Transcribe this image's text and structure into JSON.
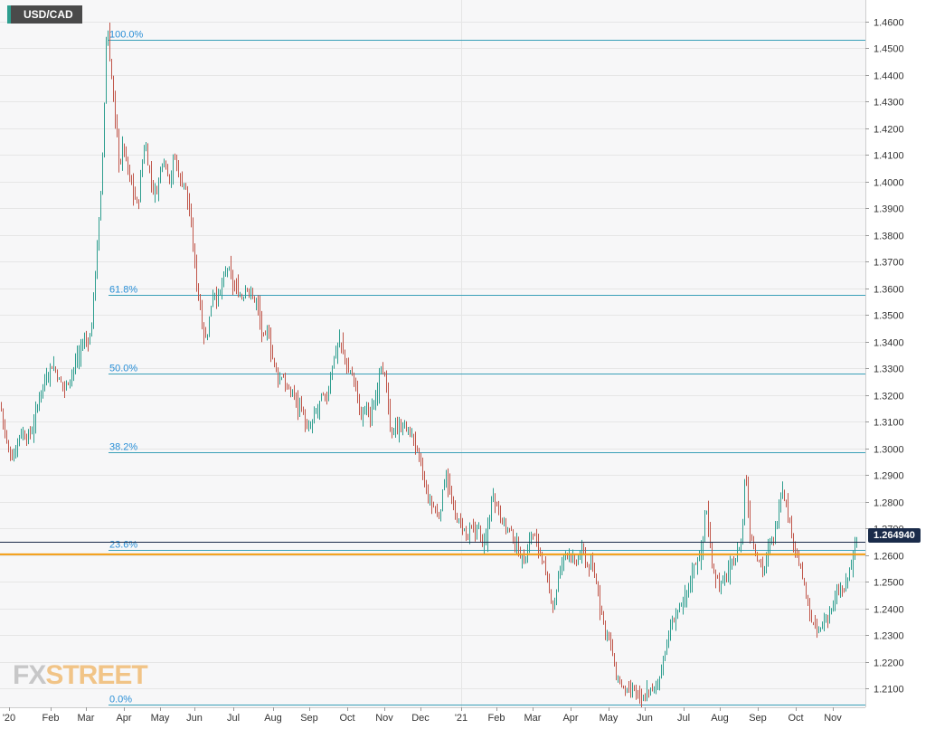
{
  "symbol": "USD/CAD",
  "last_price": "1.264940",
  "logo": {
    "part1": "FX",
    "part2": "STREET"
  },
  "colors": {
    "bull": "#2e9e8f",
    "bear": "#c0564a",
    "fib": "#3aa0b8",
    "support": "#f39c12",
    "last": "#1a2b4a",
    "grid": "#e6e6e6",
    "plot_bg": "#f7f7f8"
  },
  "chart_data": {
    "type": "ohlc-bar",
    "title": "USD/CAD",
    "ylim": [
      1.203,
      1.468
    ],
    "y_ticks": [
      "1.2100",
      "1.2200",
      "1.2300",
      "1.2400",
      "1.2500",
      "1.2600",
      "1.2700",
      "1.2800",
      "1.2900",
      "1.3000",
      "1.3100",
      "1.3200",
      "1.3300",
      "1.3400",
      "1.3500",
      "1.3600",
      "1.3700",
      "1.3800",
      "1.3900",
      "1.4000",
      "1.4100",
      "1.4200",
      "1.4300",
      "1.4400",
      "1.4500",
      "1.4600"
    ],
    "x_ticks": [
      "'20",
      "Feb",
      "Mar",
      "Apr",
      "May",
      "Jun",
      "Jul",
      "Aug",
      "Sep",
      "Oct",
      "Nov",
      "Dec",
      "'21",
      "Feb",
      "Mar",
      "Apr",
      "May",
      "Jun",
      "Jul",
      "Aug",
      "Sep",
      "Oct",
      "Nov"
    ],
    "fib_levels": [
      {
        "label": "100.0%",
        "value": 1.453
      },
      {
        "label": "61.8%",
        "value": 1.3575
      },
      {
        "label": "50.0%",
        "value": 1.328
      },
      {
        "label": "38.2%",
        "value": 1.2985
      },
      {
        "label": "23.6%",
        "value": 1.262
      },
      {
        "label": "0.0%",
        "value": 1.204
      }
    ],
    "horizontal_lines": [
      {
        "value": 1.2603,
        "kind": "support"
      },
      {
        "value": 1.2649,
        "kind": "last-price"
      }
    ],
    "path": [
      [
        0,
        1.317
      ],
      [
        4,
        1.308
      ],
      [
        8,
        1.2995
      ],
      [
        12,
        1.297
      ],
      [
        16,
        1.298
      ],
      [
        20,
        1.305
      ],
      [
        24,
        1.306
      ],
      [
        28,
        1.304
      ],
      [
        32,
        1.305
      ],
      [
        36,
        1.308
      ],
      [
        40,
        1.314
      ],
      [
        44,
        1.322
      ],
      [
        48,
        1.324
      ],
      [
        52,
        1.328
      ],
      [
        56,
        1.331
      ],
      [
        60,
        1.33
      ],
      [
        64,
        1.326
      ],
      [
        68,
        1.324
      ],
      [
        72,
        1.323
      ],
      [
        76,
        1.326
      ],
      [
        80,
        1.329
      ],
      [
        84,
        1.333
      ],
      [
        88,
        1.336
      ],
      [
        92,
        1.341
      ],
      [
        96,
        1.34
      ],
      [
        100,
        1.342
      ],
      [
        104,
        1.362
      ],
      [
        108,
        1.38
      ],
      [
        112,
        1.4
      ],
      [
        116,
        1.44
      ],
      [
        118,
        1.462
      ],
      [
        120,
        1.45
      ],
      [
        124,
        1.435
      ],
      [
        128,
        1.42
      ],
      [
        132,
        1.405
      ],
      [
        136,
        1.415
      ],
      [
        140,
        1.405
      ],
      [
        144,
        1.4
      ],
      [
        148,
        1.395
      ],
      [
        152,
        1.39
      ],
      [
        156,
        1.405
      ],
      [
        160,
        1.415
      ],
      [
        164,
        1.405
      ],
      [
        168,
        1.398
      ],
      [
        172,
        1.395
      ],
      [
        176,
        1.402
      ],
      [
        180,
        1.41
      ],
      [
        184,
        1.405
      ],
      [
        188,
        1.4
      ],
      [
        192,
        1.41
      ],
      [
        196,
        1.405
      ],
      [
        200,
        1.399
      ],
      [
        204,
        1.4
      ],
      [
        208,
        1.39
      ],
      [
        212,
        1.38
      ],
      [
        216,
        1.365
      ],
      [
        220,
        1.355
      ],
      [
        224,
        1.345
      ],
      [
        228,
        1.34
      ],
      [
        232,
        1.352
      ],
      [
        236,
        1.36
      ],
      [
        240,
        1.355
      ],
      [
        244,
        1.36
      ],
      [
        248,
        1.365
      ],
      [
        252,
        1.368
      ],
      [
        256,
        1.362
      ],
      [
        260,
        1.36
      ],
      [
        264,
        1.358
      ],
      [
        268,
        1.356
      ],
      [
        272,
        1.362
      ],
      [
        276,
        1.358
      ],
      [
        280,
        1.356
      ],
      [
        284,
        1.355
      ],
      [
        288,
        1.345
      ],
      [
        292,
        1.34
      ],
      [
        296,
        1.345
      ],
      [
        300,
        1.335
      ],
      [
        304,
        1.33
      ],
      [
        308,
        1.325
      ],
      [
        312,
        1.328
      ],
      [
        316,
        1.323
      ],
      [
        320,
        1.32
      ],
      [
        324,
        1.322
      ],
      [
        328,
        1.316
      ],
      [
        332,
        1.318
      ],
      [
        336,
        1.31
      ],
      [
        340,
        1.306
      ],
      [
        344,
        1.309
      ],
      [
        348,
        1.313
      ],
      [
        352,
        1.316
      ],
      [
        356,
        1.32
      ],
      [
        360,
        1.317
      ],
      [
        364,
        1.325
      ],
      [
        368,
        1.333
      ],
      [
        372,
        1.338
      ],
      [
        376,
        1.34
      ],
      [
        380,
        1.335
      ],
      [
        384,
        1.328
      ],
      [
        388,
        1.329
      ],
      [
        392,
        1.325
      ],
      [
        396,
        1.316
      ],
      [
        400,
        1.311
      ],
      [
        404,
        1.317
      ],
      [
        408,
        1.312
      ],
      [
        412,
        1.314
      ],
      [
        416,
        1.32
      ],
      [
        420,
        1.333
      ],
      [
        424,
        1.328
      ],
      [
        428,
        1.32
      ],
      [
        432,
        1.302
      ],
      [
        436,
        1.31
      ],
      [
        440,
        1.306
      ],
      [
        444,
        1.309
      ],
      [
        448,
        1.308
      ],
      [
        452,
        1.306
      ],
      [
        456,
        1.304
      ],
      [
        460,
        1.3
      ],
      [
        464,
        1.295
      ],
      [
        468,
        1.288
      ],
      [
        472,
        1.282
      ],
      [
        476,
        1.279
      ],
      [
        480,
        1.278
      ],
      [
        484,
        1.273
      ],
      [
        488,
        1.28
      ],
      [
        492,
        1.292
      ],
      [
        496,
        1.285
      ],
      [
        500,
        1.278
      ],
      [
        504,
        1.274
      ],
      [
        508,
        1.272
      ],
      [
        512,
        1.27
      ],
      [
        516,
        1.266
      ],
      [
        520,
        1.27
      ],
      [
        524,
        1.268
      ],
      [
        528,
        1.272
      ],
      [
        532,
        1.265
      ],
      [
        536,
        1.264
      ],
      [
        540,
        1.272
      ],
      [
        544,
        1.284
      ],
      [
        548,
        1.28
      ],
      [
        552,
        1.276
      ],
      [
        556,
        1.272
      ],
      [
        560,
        1.27
      ],
      [
        564,
        1.269
      ],
      [
        568,
        1.265
      ],
      [
        572,
        1.262
      ],
      [
        576,
        1.26
      ],
      [
        580,
        1.257
      ],
      [
        584,
        1.265
      ],
      [
        588,
        1.268
      ],
      [
        592,
        1.266
      ],
      [
        596,
        1.262
      ],
      [
        600,
        1.258
      ],
      [
        604,
        1.25
      ],
      [
        608,
        1.245
      ],
      [
        612,
        1.24
      ],
      [
        616,
        1.25
      ],
      [
        620,
        1.256
      ],
      [
        624,
        1.26
      ],
      [
        628,
        1.262
      ],
      [
        632,
        1.258
      ],
      [
        636,
        1.256
      ],
      [
        640,
        1.26
      ],
      [
        644,
        1.262
      ],
      [
        648,
        1.256
      ],
      [
        652,
        1.256
      ],
      [
        656,
        1.254
      ],
      [
        660,
        1.248
      ],
      [
        664,
        1.24
      ],
      [
        668,
        1.233
      ],
      [
        672,
        1.23
      ],
      [
        676,
        1.225
      ],
      [
        680,
        1.215
      ],
      [
        684,
        1.213
      ],
      [
        688,
        1.21
      ],
      [
        692,
        1.209
      ],
      [
        696,
        1.208
      ],
      [
        700,
        1.21
      ],
      [
        704,
        1.208
      ],
      [
        708,
        1.205
      ],
      [
        712,
        1.206
      ],
      [
        716,
        1.21
      ],
      [
        720,
        1.209
      ],
      [
        724,
        1.21
      ],
      [
        728,
        1.213
      ],
      [
        732,
        1.22
      ],
      [
        736,
        1.225
      ],
      [
        740,
        1.232
      ],
      [
        744,
        1.235
      ],
      [
        748,
        1.239
      ],
      [
        752,
        1.24
      ],
      [
        756,
        1.243
      ],
      [
        760,
        1.247
      ],
      [
        764,
        1.252
      ],
      [
        768,
        1.257
      ],
      [
        772,
        1.259
      ],
      [
        776,
        1.262
      ],
      [
        780,
        1.28
      ],
      [
        784,
        1.265
      ],
      [
        788,
        1.255
      ],
      [
        792,
        1.252
      ],
      [
        796,
        1.248
      ],
      [
        800,
        1.251
      ],
      [
        804,
        1.253
      ],
      [
        808,
        1.256
      ],
      [
        812,
        1.258
      ],
      [
        816,
        1.262
      ],
      [
        820,
        1.266
      ],
      [
        824,
        1.294
      ],
      [
        828,
        1.27
      ],
      [
        832,
        1.265
      ],
      [
        836,
        1.26
      ],
      [
        840,
        1.258
      ],
      [
        844,
        1.254
      ],
      [
        848,
        1.26
      ],
      [
        852,
        1.265
      ],
      [
        856,
        1.268
      ],
      [
        860,
        1.275
      ],
      [
        864,
        1.287
      ],
      [
        868,
        1.28
      ],
      [
        872,
        1.273
      ],
      [
        876,
        1.268
      ],
      [
        880,
        1.26
      ],
      [
        884,
        1.256
      ],
      [
        888,
        1.25
      ],
      [
        892,
        1.242
      ],
      [
        896,
        1.236
      ],
      [
        900,
        1.233
      ],
      [
        904,
        1.231
      ],
      [
        908,
        1.233
      ],
      [
        912,
        1.236
      ],
      [
        916,
        1.238
      ],
      [
        920,
        1.241
      ],
      [
        924,
        1.244
      ],
      [
        928,
        1.247
      ],
      [
        932,
        1.246
      ],
      [
        936,
        1.25
      ],
      [
        940,
        1.256
      ],
      [
        944,
        1.262
      ],
      [
        948,
        1.2649
      ]
    ]
  }
}
